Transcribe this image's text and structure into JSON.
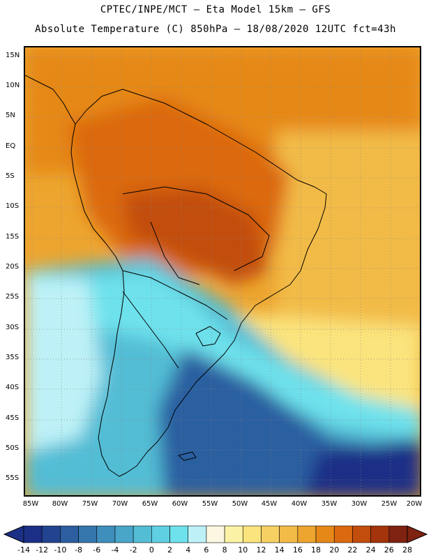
{
  "header": {
    "line1": "CPTEC/INPE/MCT —  Eta Model 15km — GFS",
    "line2": "Absolute Temperature (C) 850hPa — 18/08/2020 12UTC fct=43h"
  },
  "map": {
    "lat_labels": [
      "15N",
      "10N",
      "5N",
      "EQ",
      "5S",
      "10S",
      "15S",
      "20S",
      "25S",
      "30S",
      "35S",
      "40S",
      "45S",
      "50S",
      "55S"
    ],
    "lon_labels": [
      "85W",
      "80W",
      "75W",
      "70W",
      "65W",
      "60W",
      "55W",
      "50W",
      "45W",
      "40W",
      "35W",
      "30W",
      "25W",
      "20W"
    ]
  },
  "colorbar": {
    "ticks": [
      "-14",
      "-12",
      "-10",
      "-8",
      "-6",
      "-4",
      "-2",
      "0",
      "2",
      "4",
      "6",
      "8",
      "10",
      "12",
      "14",
      "16",
      "18",
      "20",
      "22",
      "24",
      "26",
      "28"
    ],
    "colors": [
      "#1b2f86",
      "#22438f",
      "#2c5ea0",
      "#3577ad",
      "#3f8fbd",
      "#49a6c9",
      "#53bdd5",
      "#5fd0e2",
      "#6ee2ec",
      "#bdf1f7",
      "#fbf7e1",
      "#fcf2a6",
      "#fbe47d",
      "#f7d064",
      "#f2bb47",
      "#eda52f",
      "#e68818",
      "#dc6910",
      "#c24d0d",
      "#a3340b",
      "#7f2211"
    ]
  },
  "style": {
    "warm_dark": "#a3340b",
    "warm_mid": "#dc6910",
    "warm_light": "#eda52f",
    "neutral": "#fbf7e1",
    "cool_light": "#6ee2ec",
    "cool_mid": "#3f8fbd",
    "cool_dark": "#1b2f86"
  }
}
